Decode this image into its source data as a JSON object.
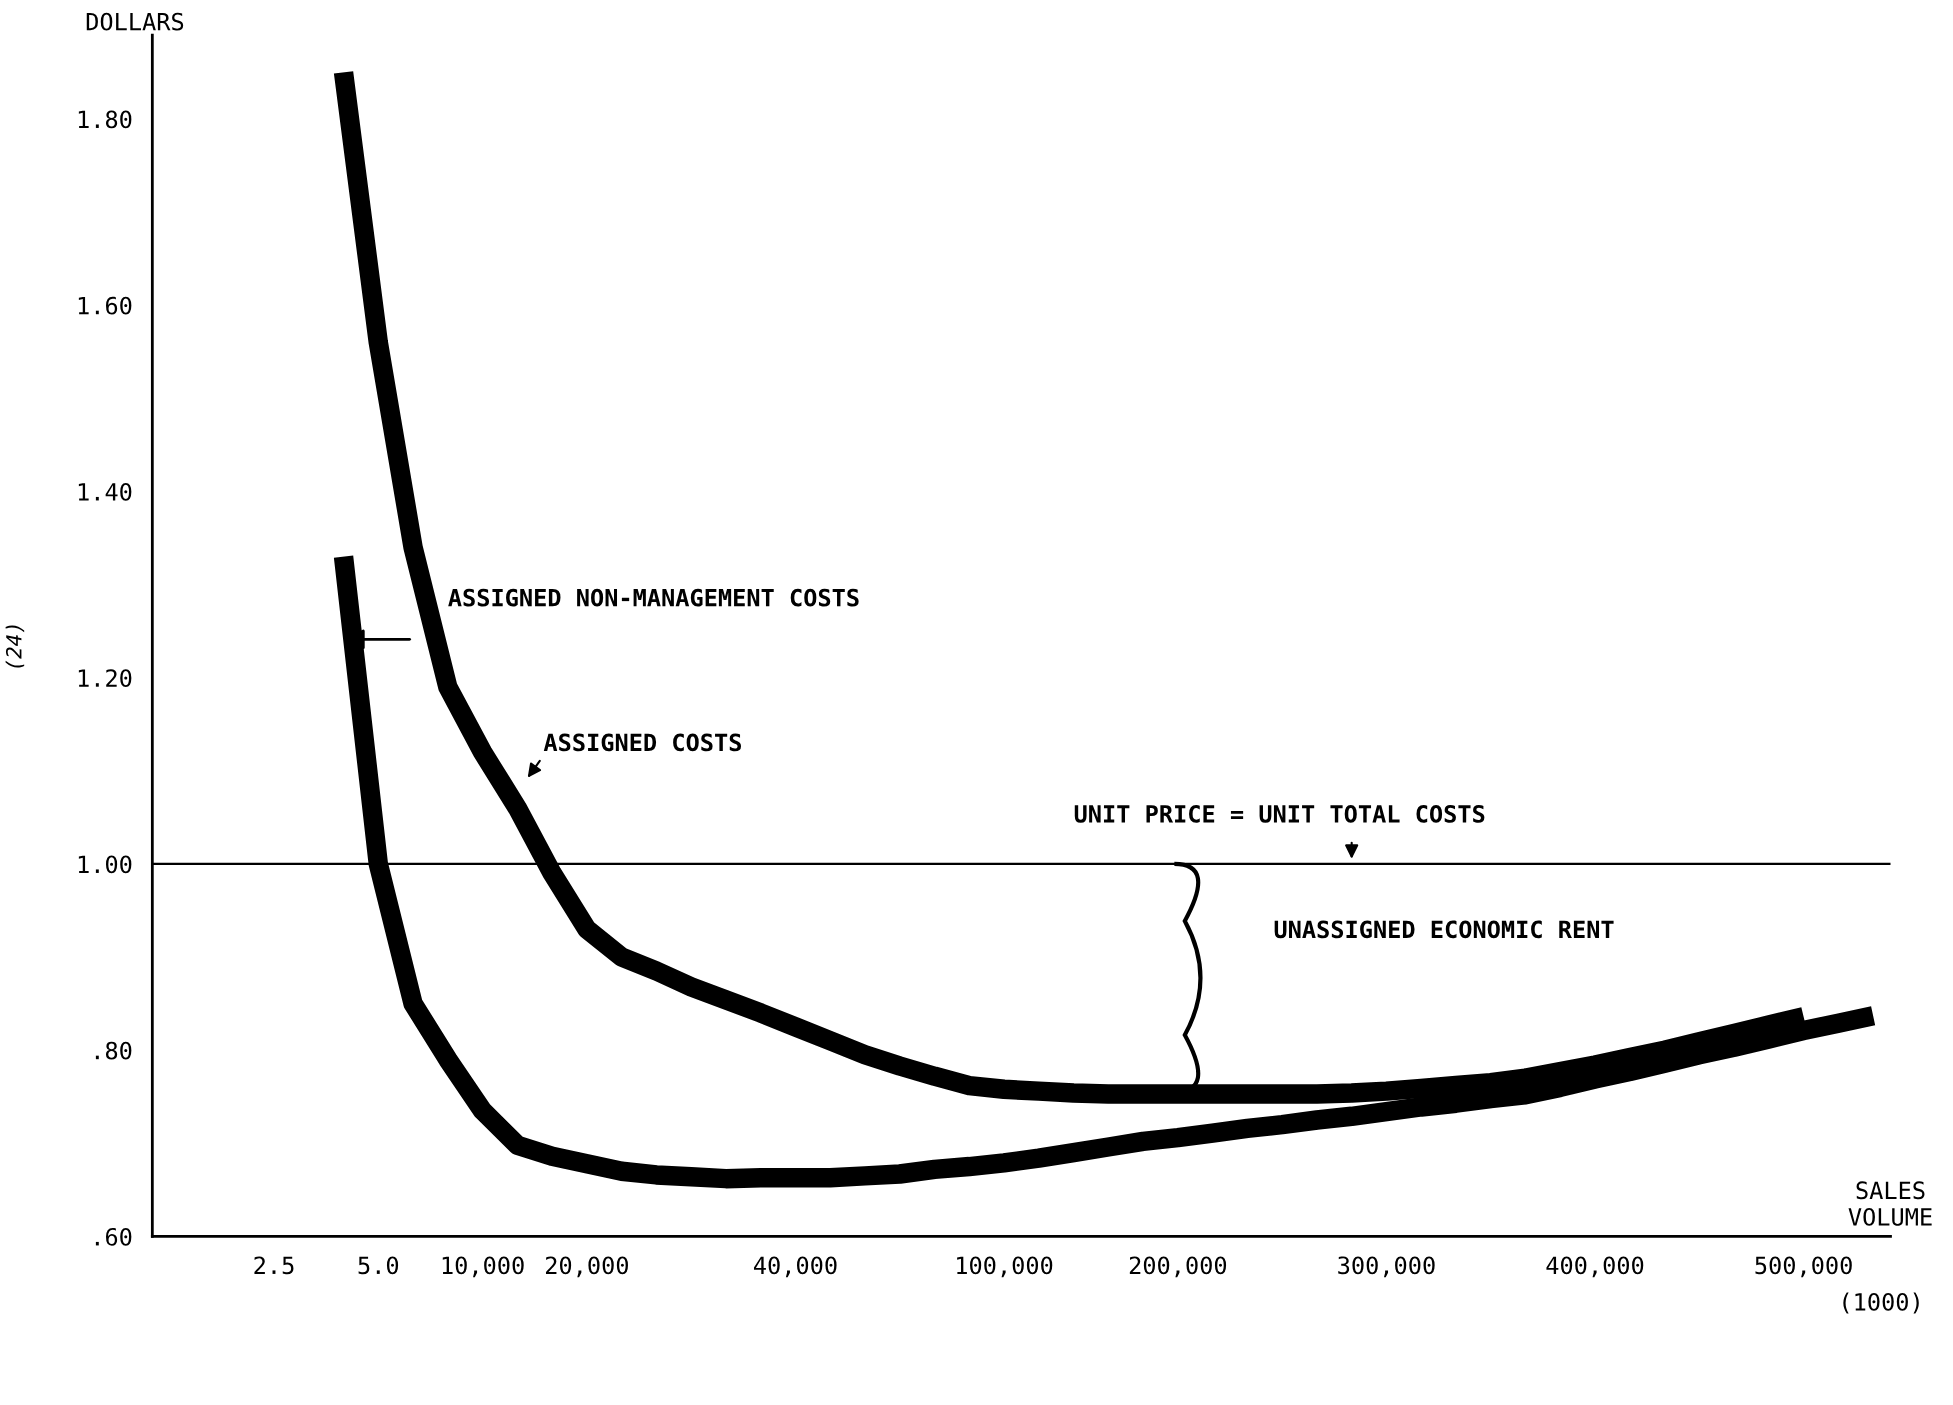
{
  "chart_data": {
    "type": "line",
    "xlabel": "SALES VOLUME",
    "ylabel": "DOLLARS",
    "categories": [
      null,
      null,
      null,
      "2.5",
      null,
      null,
      "5.0",
      null,
      null,
      "10,000",
      null,
      null,
      "20,000",
      null,
      null,
      null,
      null,
      null,
      "40,000",
      null,
      null,
      null,
      null,
      null,
      "100,000",
      null,
      null,
      null,
      null,
      "200,000",
      null,
      null,
      null,
      null,
      null,
      "300,000",
      null,
      null,
      null,
      null,
      null,
      "400,000",
      null,
      null,
      null,
      null,
      null,
      "500,000",
      null,
      null
    ],
    "ylim": [
      0.6,
      1.89
    ],
    "yticks": [
      {
        "value": 0.6,
        "label": ".60"
      },
      {
        "value": 0.8,
        "label": ".80"
      },
      {
        "value": 1.0,
        "label": "1.00"
      },
      {
        "value": 1.2,
        "label": "1.20"
      },
      {
        "value": 1.4,
        "label": "1.40"
      },
      {
        "value": 1.6,
        "label": "1.60"
      },
      {
        "value": 1.8,
        "label": "1.80"
      }
    ],
    "grid": false,
    "legend": false,
    "marker": "none",
    "line_style": "solid",
    "series": [
      {
        "color": "#000000",
        "values": [
          null,
          null,
          null,
          null,
          null,
          1.85,
          1.56,
          1.34,
          1.19,
          1.12,
          1.06,
          0.99,
          0.93,
          0.9,
          0.885,
          0.868,
          0.854,
          0.84,
          0.825,
          0.81,
          0.795,
          0.783,
          0.772,
          0.762,
          0.758,
          0.756,
          0.754,
          0.753,
          0.753,
          0.753,
          0.753,
          0.753,
          0.753,
          0.753,
          0.754,
          0.756,
          0.759,
          0.762,
          0.765,
          0.77,
          0.777,
          0.784,
          0.792,
          0.8,
          0.809,
          0.818,
          0.827,
          0.836,
          null,
          null
        ]
      },
      {
        "color": "#000000",
        "values": [
          null,
          null,
          null,
          null,
          null,
          1.33,
          1.0,
          0.85,
          0.79,
          0.735,
          0.698,
          0.686,
          0.678,
          0.67,
          0.666,
          0.664,
          0.662,
          0.663,
          0.663,
          0.663,
          0.665,
          0.667,
          0.672,
          0.675,
          0.679,
          0.684,
          0.69,
          0.696,
          0.702,
          0.706,
          0.711,
          0.716,
          0.72,
          0.725,
          0.729,
          0.734,
          0.739,
          0.743,
          0.748,
          0.752,
          0.76,
          0.769,
          0.777,
          0.786,
          0.795,
          0.803,
          0.812,
          0.821,
          0.829,
          0.837
        ]
      }
    ],
    "ref_lines": [
      {
        "axis": "y",
        "value": 1.0,
        "color": "#000000"
      }
    ],
    "annotations": [
      "ASSIGNED NON-MANAGEMENT COSTS",
      "ASSIGNED COSTS",
      "UNIT PRICE = UNIT TOTAL COSTS",
      "UNASSIGNED ECONOMIC RENT",
      "(1000)",
      "(24)"
    ]
  }
}
